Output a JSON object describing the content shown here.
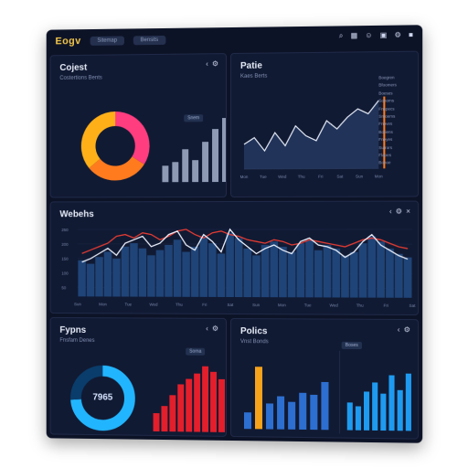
{
  "header": {
    "brand": "Eogv",
    "pills": [
      "Sitemap",
      "Bensits"
    ],
    "icons": [
      "search-icon",
      "grid-icon",
      "user-icon",
      "lock-icon",
      "settings-icon",
      "square-icon"
    ]
  },
  "panels": {
    "top_left": {
      "title": "Cojest",
      "subtitle": "Costertions Bents",
      "tag": "Snem",
      "donut": {
        "values": [
          34,
          30,
          36
        ],
        "colors": [
          "#ff3d7f",
          "#ff7b1e",
          "#ffb019"
        ]
      },
      "bars": [
        18,
        22,
        36,
        24,
        44,
        58,
        70
      ]
    },
    "top_right": {
      "title": "Patie",
      "subtitle": "Kaes Berts",
      "line": [
        30,
        38,
        22,
        44,
        28,
        52,
        40,
        34,
        58,
        48,
        62,
        72,
        66,
        82
      ],
      "legend": [
        "Boegren",
        "Bfoomers",
        "Boeses",
        "Sonoms",
        "Fnspecs",
        "Smoems",
        "Fnoves",
        "Boriens",
        "Fneyes",
        "Sutrors",
        "Flapes",
        "Bonoe"
      ],
      "x_ticks": [
        "Mon",
        "Tue",
        "Wed",
        "Thu",
        "Fri",
        "Sat",
        "Sun",
        "Mon"
      ]
    },
    "middle": {
      "title": "Webehs",
      "bars": [
        42,
        38,
        46,
        52,
        44,
        58,
        62,
        56,
        48,
        54,
        60,
        66,
        52,
        58,
        70,
        62,
        50,
        74,
        68,
        56,
        48,
        60,
        64,
        58,
        52,
        62,
        66,
        54,
        60,
        56,
        48,
        52,
        62,
        70,
        64,
        56,
        50,
        46
      ],
      "line_white": [
        40,
        44,
        50,
        56,
        48,
        62,
        66,
        70,
        58,
        62,
        72,
        76,
        60,
        54,
        72,
        64,
        52,
        78,
        66,
        58,
        50,
        56,
        60,
        54,
        50,
        64,
        68,
        60,
        58,
        54,
        46,
        52,
        64,
        72,
        60,
        54,
        48,
        44
      ],
      "line_red": [
        50,
        54,
        58,
        62,
        70,
        72,
        68,
        74,
        72,
        66,
        70,
        76,
        78,
        72,
        68,
        74,
        76,
        72,
        70,
        66,
        64,
        62,
        66,
        64,
        60,
        62,
        66,
        64,
        62,
        60,
        58,
        62,
        66,
        68,
        66,
        62,
        58,
        56
      ],
      "y_ticks": [
        "250",
        "200",
        "150",
        "100",
        "50"
      ],
      "x_ticks": [
        "Sun",
        "Mon",
        "Tue",
        "Wed",
        "Thu",
        "Fri",
        "Sat",
        "Sun",
        "Mon",
        "Tue",
        "Wed",
        "Thu",
        "Fri",
        "Sat"
      ]
    },
    "bottom_left": {
      "title": "Fypns",
      "subtitle": "Fnsfam Denes",
      "tag": "Sorna",
      "donut_value": "7965",
      "donut": {
        "values": [
          74,
          26
        ],
        "colors": [
          "#22b5ff",
          "#0a3d6b"
        ]
      },
      "bars": [
        20,
        28,
        40,
        52,
        58,
        64,
        72,
        66,
        58
      ]
    },
    "bottom_right": {
      "title": "Polics",
      "subtitle": "Vnst Bonds",
      "tag": "Boses",
      "bars_a": [
        18,
        68,
        28,
        36,
        30,
        40,
        38,
        52
      ],
      "bars_b": [
        30,
        26,
        42,
        52,
        40,
        60,
        44,
        62
      ]
    }
  }
}
